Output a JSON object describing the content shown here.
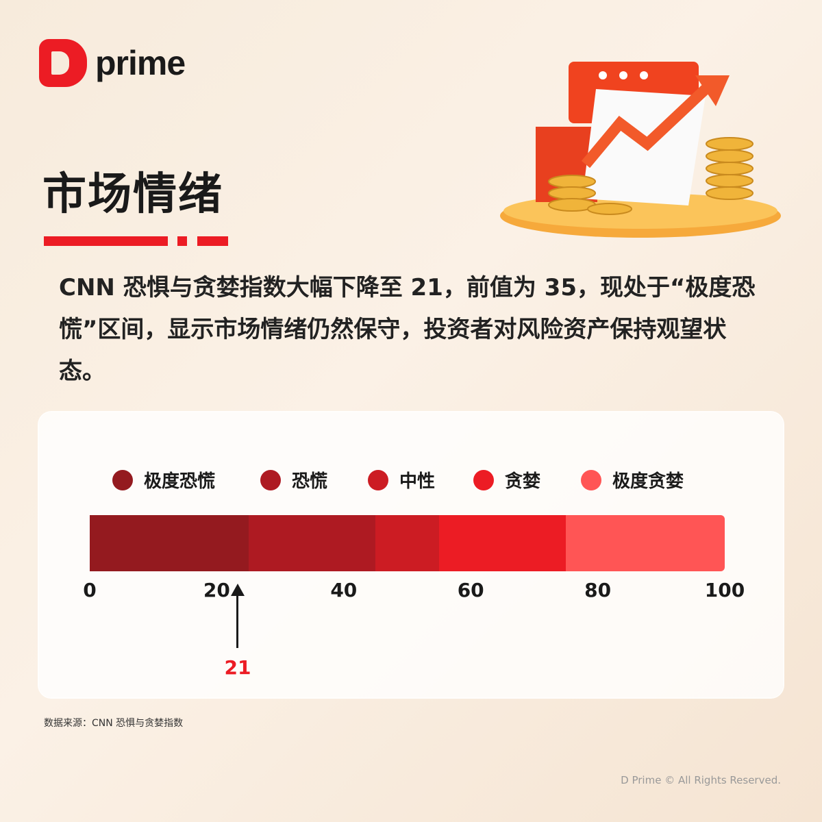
{
  "brand": {
    "logo_text": "prime",
    "logo_color": "#ec1c24"
  },
  "header": {
    "title": "市场情绪"
  },
  "body": {
    "text": "CNN 恐惧与贪婪指数大幅下降至 21，前值为 35，现处于“极度恐慌”区间，显示市场情绪仍然保守，投资者对风险资产保持观望状态。"
  },
  "chart_data": {
    "type": "bar",
    "subtype": "segmented-gauge",
    "xlim": [
      0,
      100
    ],
    "ticks": [
      "0",
      "20",
      "40",
      "60",
      "80",
      "100"
    ],
    "segments": [
      {
        "name": "极度恐慌",
        "from": 0,
        "to": 25,
        "color": "#941a1f"
      },
      {
        "name": "恐慌",
        "from": 25,
        "to": 45,
        "color": "#ae1a22"
      },
      {
        "name": "中性",
        "from": 45,
        "to": 55,
        "color": "#cc1c23"
      },
      {
        "name": "贪婪",
        "from": 55,
        "to": 75,
        "color": "#ec1c24"
      },
      {
        "name": "极度贪婪",
        "from": 75,
        "to": 100,
        "color": "#ff5555"
      }
    ],
    "legend_position": "top",
    "marker": {
      "value": 21,
      "label": "21",
      "color": "#ec1c24"
    }
  },
  "footer": {
    "source": "数据来源：CNN 恐惧与贪婪指数",
    "copyright": "D Prime © All Rights Reserved."
  }
}
